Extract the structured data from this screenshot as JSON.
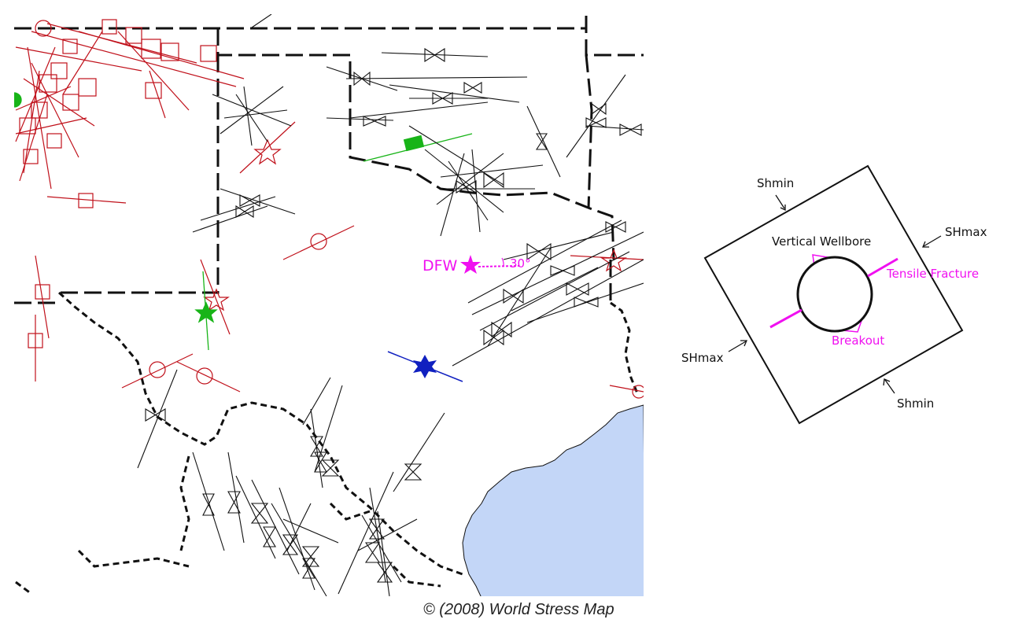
{
  "map": {
    "marker_label": "DFW",
    "angle_label": "30°",
    "credit": "© (2008) World Stress Map",
    "colors": {
      "water": "#c3d6f7",
      "black": "#111111",
      "red": "#c0101a",
      "green": "#18b418",
      "blue": "#1020c0",
      "magenta": "#f010f0"
    }
  },
  "diagram": {
    "title": "Vertical Wellbore",
    "labels": {
      "shmin_top": "Shmin",
      "shmax_right": "SHmax",
      "shmax_left": "SHmax",
      "shmin_bottom": "Shmin",
      "tensile": "Tensile Fracture",
      "breakout": "Breakout"
    }
  }
}
